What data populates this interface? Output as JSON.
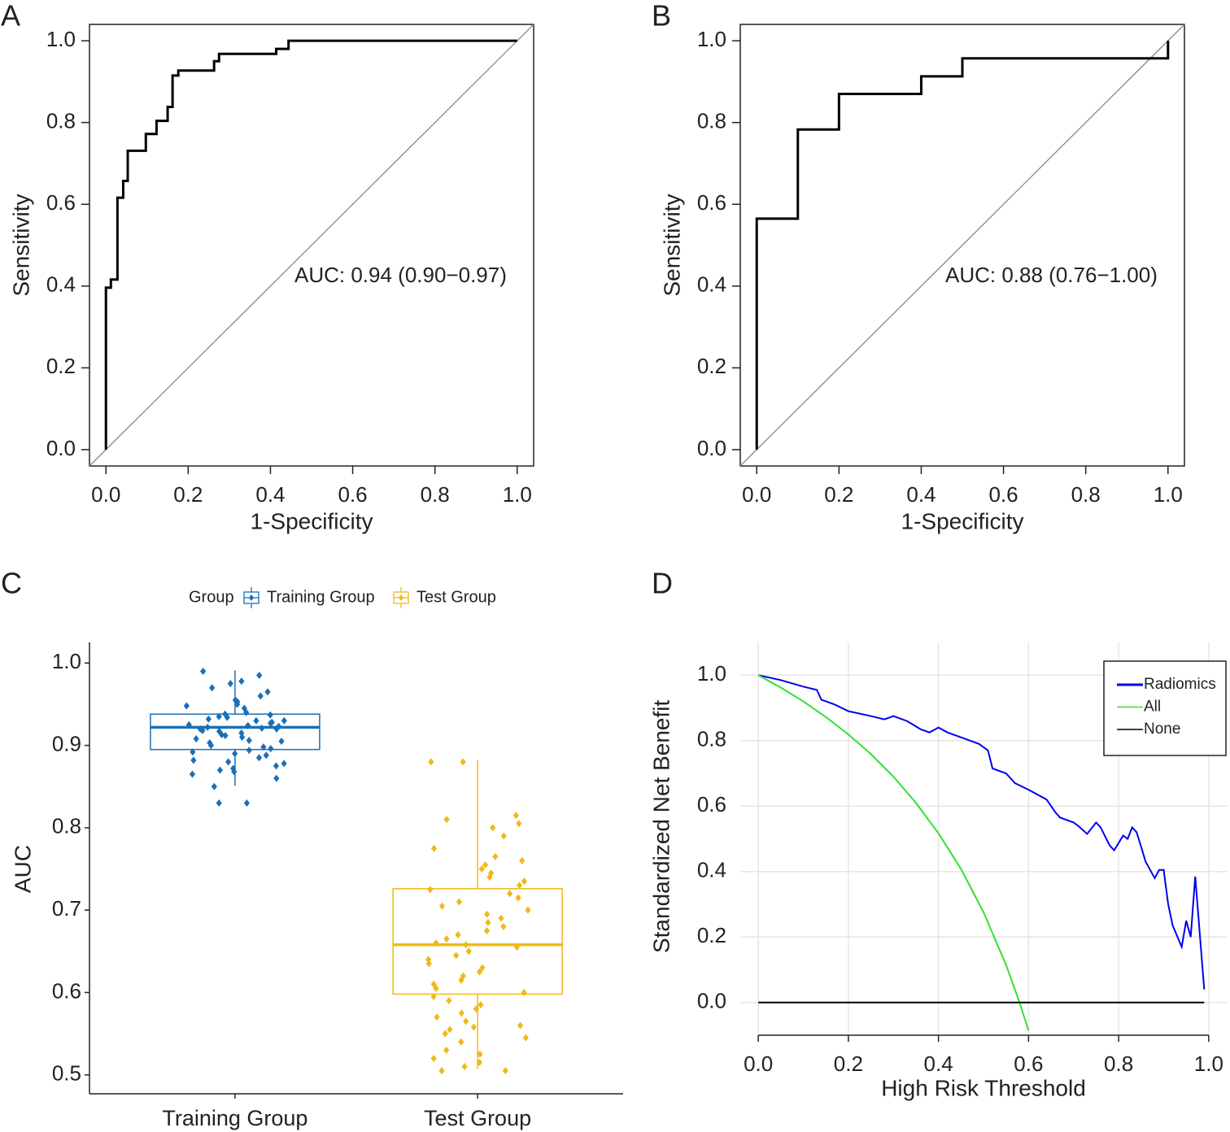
{
  "chart_data": [
    {
      "panel": "A",
      "type": "line",
      "xlabel": "1-Specificity",
      "ylabel": "Sensitivity",
      "annotation": "AUC: 0.94 (0.90−0.97)",
      "color": "#000000",
      "frame": true,
      "reference_line": true,
      "x": [
        0,
        0,
        0.012,
        0.012,
        0.028,
        0.028,
        0.042,
        0.042,
        0.053,
        0.053,
        0.097,
        0.097,
        0.123,
        0.123,
        0.15,
        0.15,
        0.162,
        0.162,
        0.176,
        0.176,
        0.263,
        0.263,
        0.275,
        0.275,
        0.414,
        0.414,
        0.444,
        0.444,
        1.0
      ],
      "values": [
        0,
        0.396,
        0.396,
        0.416,
        0.416,
        0.616,
        0.616,
        0.657,
        0.657,
        0.731,
        0.731,
        0.772,
        0.772,
        0.804,
        0.804,
        0.838,
        0.838,
        0.915,
        0.915,
        0.927,
        0.927,
        0.95,
        0.95,
        0.968,
        0.968,
        0.98,
        0.98,
        1.0,
        1.0
      ],
      "xlim": [
        -0.04,
        1.04
      ],
      "ylim": [
        -0.04,
        1.04
      ],
      "xticks": [
        {
          "value": 0,
          "label": "0.0"
        },
        0.2,
        0.4,
        0.6,
        0.8,
        {
          "value": 1,
          "label": "1.0"
        }
      ],
      "yticks": [
        {
          "value": 0,
          "label": "0.0"
        },
        0.2,
        0.4,
        0.6,
        0.8,
        {
          "value": 1,
          "label": "1.0"
        }
      ]
    },
    {
      "panel": "B",
      "type": "line",
      "xlabel": "1-Specificity",
      "ylabel": "Sensitivity",
      "annotation": "AUC: 0.88 (0.76−1.00)",
      "color": "#000000",
      "frame": true,
      "reference_line": true,
      "x": [
        0,
        0,
        0.1,
        0.1,
        0.2,
        0.2,
        0.4,
        0.4,
        0.5,
        0.5,
        1.0,
        1.0
      ],
      "values": [
        0,
        0.565,
        0.565,
        0.783,
        0.783,
        0.87,
        0.87,
        0.913,
        0.913,
        0.957,
        0.957,
        1.0
      ],
      "xlim": [
        -0.04,
        1.04
      ],
      "ylim": [
        -0.04,
        1.04
      ],
      "xticks": [
        {
          "value": 0,
          "label": "0.0"
        },
        0.2,
        0.4,
        0.6,
        0.8,
        {
          "value": 1,
          "label": "1.0"
        }
      ],
      "yticks": [
        {
          "value": 0,
          "label": "0.0"
        },
        0.2,
        0.4,
        0.6,
        0.8,
        {
          "value": 1,
          "label": "1.0"
        }
      ]
    },
    {
      "panel": "C",
      "type": "box",
      "ylabel": "AUC",
      "legend_title": "Group",
      "legend": "top",
      "categories": [
        "Training Group",
        "Test Group"
      ],
      "series": [
        {
          "name": "Training Group",
          "color": "#1a6fb8",
          "stats": {
            "whisker_low": 0.851,
            "q1": 0.895,
            "median": 0.922,
            "q3": 0.938,
            "whisker_high": 0.991
          },
          "points": [
            0.99,
            0.985,
            0.978,
            0.975,
            0.97,
            0.965,
            0.96,
            0.955,
            0.953,
            0.95,
            0.948,
            0.945,
            0.94,
            0.938,
            0.937,
            0.935,
            0.934,
            0.932,
            0.93,
            0.93,
            0.928,
            0.927,
            0.925,
            0.924,
            0.923,
            0.922,
            0.921,
            0.92,
            0.92,
            0.918,
            0.917,
            0.915,
            0.913,
            0.912,
            0.91,
            0.908,
            0.906,
            0.905,
            0.903,
            0.9,
            0.898,
            0.896,
            0.894,
            0.892,
            0.89,
            0.888,
            0.885,
            0.882,
            0.88,
            0.878,
            0.875,
            0.872,
            0.87,
            0.868,
            0.865,
            0.86,
            0.85,
            0.83,
            0.83
          ]
        },
        {
          "name": "Test Group",
          "color": "#f0b81a",
          "stats": {
            "whisker_low": 0.507,
            "q1": 0.598,
            "median": 0.658,
            "q3": 0.726,
            "whisker_high": 0.882
          },
          "points": [
            0.88,
            0.88,
            0.815,
            0.81,
            0.805,
            0.8,
            0.79,
            0.775,
            0.765,
            0.76,
            0.755,
            0.75,
            0.745,
            0.74,
            0.735,
            0.73,
            0.725,
            0.72,
            0.715,
            0.71,
            0.705,
            0.7,
            0.695,
            0.69,
            0.685,
            0.68,
            0.675,
            0.67,
            0.665,
            0.66,
            0.658,
            0.655,
            0.65,
            0.645,
            0.64,
            0.635,
            0.63,
            0.625,
            0.62,
            0.615,
            0.61,
            0.605,
            0.6,
            0.595,
            0.59,
            0.585,
            0.58,
            0.575,
            0.57,
            0.565,
            0.56,
            0.558,
            0.555,
            0.55,
            0.545,
            0.54,
            0.53,
            0.525,
            0.52,
            0.515,
            0.51,
            0.505,
            0.505
          ]
        }
      ],
      "ylim": [
        0.477,
        1.025
      ],
      "yticks": [
        0.5,
        0.6,
        0.7,
        0.8,
        0.9,
        {
          "value": 1,
          "label": "1.0"
        }
      ]
    },
    {
      "panel": "D",
      "type": "line",
      "xlabel": "High Risk Threshold",
      "ylabel": "Standardized Net Benefit",
      "grid": true,
      "legend": "top-right",
      "series": [
        {
          "name": "Radiomics",
          "color": "#0000ee",
          "x": [
            0,
            0.05,
            0.1,
            0.13,
            0.14,
            0.17,
            0.2,
            0.25,
            0.28,
            0.3,
            0.33,
            0.36,
            0.38,
            0.4,
            0.42,
            0.45,
            0.49,
            0.51,
            0.52,
            0.55,
            0.57,
            0.6,
            0.62,
            0.64,
            0.66,
            0.67,
            0.7,
            0.71,
            0.73,
            0.75,
            0.76,
            0.78,
            0.79,
            0.81,
            0.82,
            0.83,
            0.84,
            0.86,
            0.88,
            0.89,
            0.9,
            0.91,
            0.92,
            0.94,
            0.95,
            0.96,
            0.97,
            0.99
          ],
          "values": [
            1.0,
            0.985,
            0.965,
            0.955,
            0.925,
            0.91,
            0.89,
            0.875,
            0.865,
            0.875,
            0.86,
            0.835,
            0.825,
            0.84,
            0.825,
            0.81,
            0.79,
            0.77,
            0.715,
            0.7,
            0.67,
            0.65,
            0.635,
            0.62,
            0.58,
            0.565,
            0.55,
            0.54,
            0.515,
            0.55,
            0.535,
            0.48,
            0.465,
            0.51,
            0.5,
            0.535,
            0.52,
            0.43,
            0.38,
            0.405,
            0.405,
            0.3,
            0.235,
            0.17,
            0.25,
            0.2,
            0.385,
            0.04
          ]
        },
        {
          "name": "All",
          "color": "#33e033",
          "x": [
            0,
            0.05,
            0.1,
            0.15,
            0.2,
            0.25,
            0.3,
            0.35,
            0.4,
            0.45,
            0.5,
            0.55,
            0.58,
            0.6
          ],
          "values": [
            1.0,
            0.962,
            0.92,
            0.872,
            0.819,
            0.759,
            0.69,
            0.61,
            0.517,
            0.408,
            0.276,
            0.115,
            0,
            -0.086
          ]
        },
        {
          "name": "None",
          "color": "#000000",
          "x": [
            0,
            0.99
          ],
          "values": [
            0,
            0
          ]
        }
      ],
      "xlim": [
        -0.04,
        1.04
      ],
      "ylim": [
        -0.1,
        1.1
      ],
      "xticks": [
        {
          "value": 0,
          "label": "0.0"
        },
        0.2,
        0.4,
        0.6,
        0.8,
        {
          "value": 1,
          "label": "1.0"
        }
      ],
      "yticks": [
        {
          "value": 0,
          "label": "0.0"
        },
        0.2,
        0.4,
        0.6,
        0.8,
        {
          "value": 1,
          "label": "1.0"
        }
      ]
    }
  ]
}
